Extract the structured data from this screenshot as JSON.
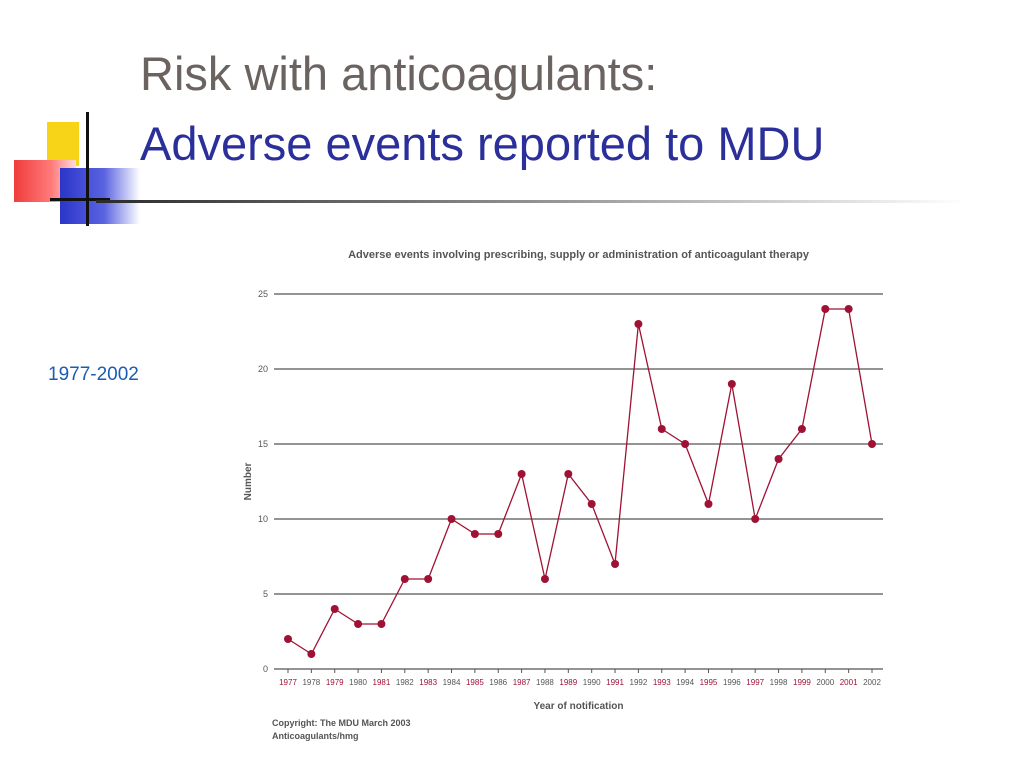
{
  "slide": {
    "title_line1": "Risk with anticoagulants:",
    "title_line2": "Adverse events reported to MDU",
    "side_note": "1977-2002"
  },
  "colors": {
    "title_gray": "#6b6360",
    "title_blue": "#2a2f9a",
    "side_note_blue": "#1b5cb3",
    "series": "#a01234",
    "gridline": "#555555"
  },
  "chart_data": {
    "type": "line",
    "title": "Adverse events involving prescribing, supply or administration of anticoagulant therapy",
    "xlabel": "Year of notification",
    "ylabel": "Number",
    "ylim": [
      0,
      25
    ],
    "yticks": [
      0,
      5,
      10,
      15,
      20,
      25
    ],
    "grid": true,
    "x": [
      "1977",
      "1978",
      "1979",
      "1980",
      "1981",
      "1982",
      "1983",
      "1984",
      "1985",
      "1986",
      "1987",
      "1988",
      "1989",
      "1990",
      "1991",
      "1992",
      "1993",
      "1994",
      "1995",
      "1996",
      "1997",
      "1998",
      "1999",
      "2000",
      "2001",
      "2002"
    ],
    "highlighted_x": [
      "1977",
      "1979",
      "1981",
      "1983",
      "1985",
      "1987",
      "1989",
      "1991",
      "1993",
      "1995",
      "1997",
      "1999",
      "2001"
    ],
    "series": [
      {
        "values": [
          2,
          1,
          4,
          3,
          3,
          6,
          6,
          10,
          9,
          9,
          13,
          6,
          13,
          11,
          7,
          23,
          16,
          15,
          11,
          19,
          10,
          14,
          16,
          24,
          24,
          15
        ]
      }
    ],
    "footnote_lines": [
      "Copyright: The MDU March 2003",
      "Anticoagulants/hmg"
    ]
  }
}
